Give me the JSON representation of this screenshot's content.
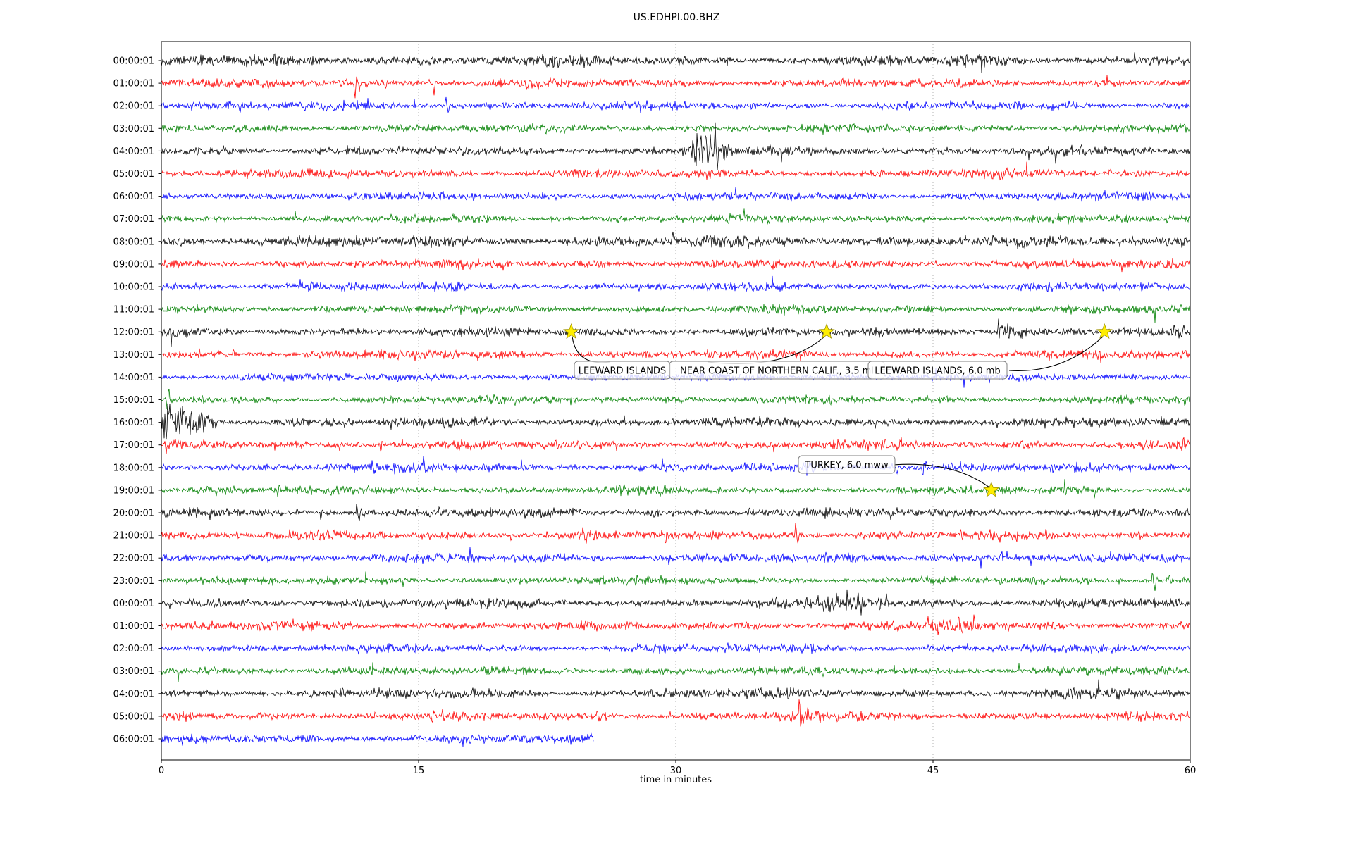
{
  "chart_data": {
    "type": "line",
    "variant": "seismogram-helicorder-dayplot",
    "title": "US.EDHPI.00.BHZ",
    "xlabel": "time in minutes",
    "x_range": [
      0,
      60
    ],
    "x_ticks": [
      0,
      15,
      30,
      45,
      60
    ],
    "grid_minutes": [
      15,
      30,
      45
    ],
    "grid_on": true,
    "colors": {
      "black": "#000000",
      "red": "#ff0000",
      "blue": "#0000ff",
      "green": "#008000",
      "grid": "#aaaaaa",
      "star_fill": "#ffee00",
      "star_edge": "#a09400",
      "box_border": "#808080",
      "box_fill": "rgba(255,255,255,0.82)"
    },
    "rows": [
      {
        "label": "00:00:01",
        "color": "black",
        "amp": 4.4,
        "end": 60,
        "bursts": [],
        "spikes": []
      },
      {
        "label": "01:00:01",
        "color": "red",
        "amp": 3.6,
        "end": 60,
        "bursts": [],
        "spikes": [
          [
            11.3,
            -22
          ],
          [
            11.55,
            -9
          ],
          [
            13.1,
            -7
          ],
          [
            15.9,
            -19
          ],
          [
            15.6,
            6
          ],
          [
            10.8,
            5
          ]
        ]
      },
      {
        "label": "02:00:01",
        "color": "blue",
        "amp": 3.6,
        "end": 60,
        "bursts": [],
        "spikes": [
          [
            4.6,
            -13
          ],
          [
            16.6,
            14
          ],
          [
            16.75,
            -11
          ],
          [
            26.6,
            9
          ],
          [
            36.9,
            5
          ],
          [
            49.8,
            4
          ]
        ]
      },
      {
        "label": "03:00:01",
        "color": "green",
        "amp": 3.4,
        "end": 60,
        "bursts": [],
        "spikes": []
      },
      {
        "label": "04:00:01",
        "color": "black",
        "amp": 3.8,
        "end": 60,
        "bursts": [
          [
            30.6,
            3.2,
            4.5
          ]
        ],
        "spikes": [
          [
            32.3,
            24
          ],
          [
            32.45,
            -20
          ],
          [
            31.5,
            10
          ],
          [
            33.2,
            8
          ]
        ]
      },
      {
        "label": "05:00:01",
        "color": "red",
        "amp": 3.6,
        "end": 60,
        "bursts": [],
        "spikes": []
      },
      {
        "label": "06:00:01",
        "color": "blue",
        "amp": 3.5,
        "end": 60,
        "bursts": [],
        "spikes": []
      },
      {
        "label": "07:00:01",
        "color": "green",
        "amp": 3.4,
        "end": 60,
        "bursts": [],
        "spikes": []
      },
      {
        "label": "08:00:01",
        "color": "black",
        "amp": 4.6,
        "end": 60,
        "bursts": [],
        "spikes": []
      },
      {
        "label": "09:00:01",
        "color": "red",
        "amp": 3.6,
        "end": 60,
        "bursts": [
          [
            35.5,
            1.2,
            1.8
          ]
        ],
        "spikes": []
      },
      {
        "label": "10:00:01",
        "color": "blue",
        "amp": 3.6,
        "end": 60,
        "bursts": [],
        "spikes": []
      },
      {
        "label": "11:00:01",
        "color": "green",
        "amp": 3.4,
        "end": 60,
        "bursts": [],
        "spikes": []
      },
      {
        "label": "12:00:01",
        "color": "black",
        "amp": 3.8,
        "end": 60,
        "bursts": [
          [
            48.6,
            2.2,
            3.4
          ]
        ],
        "spikes": [
          [
            48.8,
            13
          ],
          [
            49.1,
            -11
          ]
        ]
      },
      {
        "label": "13:00:01",
        "color": "red",
        "amp": 3.7,
        "end": 60,
        "bursts": [],
        "spikes": [
          [
            4.2,
            7
          ]
        ]
      },
      {
        "label": "14:00:01",
        "color": "blue",
        "amp": 3.4,
        "end": 60,
        "bursts": [],
        "spikes": []
      },
      {
        "label": "15:00:01",
        "color": "green",
        "amp": 3.4,
        "end": 60,
        "bursts": [],
        "spikes": [
          [
            0.35,
            -26
          ],
          [
            0.45,
            11
          ],
          [
            59.7,
            -9
          ]
        ]
      },
      {
        "label": "16:00:01",
        "color": "black",
        "amp": 3.8,
        "end": 60,
        "bursts": [
          [
            0,
            3.8,
            5.5,
            "decay"
          ]
        ],
        "spikes": [
          [
            0.3,
            -20
          ],
          [
            0.8,
            16
          ],
          [
            1.5,
            -14
          ],
          [
            2.4,
            12
          ],
          [
            13.4,
            -9
          ],
          [
            16.7,
            7
          ],
          [
            17.9,
            -6
          ],
          [
            27,
            6
          ],
          [
            36.6,
            6
          ],
          [
            38,
            -5
          ],
          [
            44.6,
            5
          ]
        ]
      },
      {
        "label": "17:00:01",
        "color": "red",
        "amp": 3.7,
        "end": 60,
        "bursts": [],
        "spikes": [
          [
            10.4,
            -8
          ],
          [
            12.8,
            -12
          ],
          [
            15.5,
            8
          ],
          [
            23,
            5
          ],
          [
            28,
            -5
          ],
          [
            41.5,
            8
          ],
          [
            43,
            -6
          ],
          [
            50.2,
            6
          ],
          [
            59.3,
            12
          ],
          [
            59.5,
            -8
          ]
        ]
      },
      {
        "label": "18:00:01",
        "color": "blue",
        "amp": 3.7,
        "end": 60,
        "bursts": [
          [
            37.3,
            2,
            1.8
          ]
        ],
        "spikes": [
          [
            10.2,
            6
          ],
          [
            12.3,
            10
          ],
          [
            12.5,
            -8
          ],
          [
            15.3,
            12
          ],
          [
            15.5,
            -10
          ],
          [
            18.8,
            9
          ],
          [
            21,
            7
          ],
          [
            42.9,
            -11
          ],
          [
            44.4,
            -16
          ],
          [
            44.6,
            8
          ]
        ]
      },
      {
        "label": "19:00:01",
        "color": "green",
        "amp": 3.4,
        "end": 60,
        "bursts": [],
        "spikes": [
          [
            3.2,
            -6
          ],
          [
            6.8,
            -12
          ],
          [
            6.9,
            6
          ],
          [
            32.5,
            -7
          ],
          [
            45.1,
            -5
          ]
        ]
      },
      {
        "label": "20:00:01",
        "color": "black",
        "amp": 3.9,
        "end": 60,
        "bursts": [],
        "spikes": [
          [
            2.8,
            -8
          ],
          [
            9.3,
            -10
          ],
          [
            11.4,
            14
          ],
          [
            11.55,
            -12
          ],
          [
            16.2,
            8
          ],
          [
            34.3,
            7
          ],
          [
            42.4,
            10
          ],
          [
            42.55,
            -8
          ],
          [
            55.6,
            6
          ],
          [
            58.9,
            5
          ]
        ]
      },
      {
        "label": "21:00:01",
        "color": "red",
        "amp": 3.7,
        "end": 60,
        "bursts": [],
        "spikes": [
          [
            20.4,
            -12
          ],
          [
            24.6,
            9
          ],
          [
            24.8,
            -7
          ],
          [
            29.2,
            8
          ],
          [
            29.4,
            -14
          ],
          [
            37.0,
            20
          ],
          [
            37.15,
            -10
          ],
          [
            46.6,
            8
          ],
          [
            48.3,
            9
          ],
          [
            51,
            5
          ],
          [
            57,
            4
          ]
        ]
      },
      {
        "label": "22:00:01",
        "color": "blue",
        "amp": 3.7,
        "end": 60,
        "bursts": [
          [
            17.5,
            1.5,
            2.4
          ],
          [
            44.5,
            4.5,
            1.7
          ]
        ],
        "spikes": [
          [
            18,
            11
          ],
          [
            18.2,
            -9
          ],
          [
            24,
            6
          ],
          [
            29.6,
            -12
          ],
          [
            47.8,
            -13
          ],
          [
            49,
            8
          ]
        ]
      },
      {
        "label": "23:00:01",
        "color": "green",
        "amp": 3.4,
        "end": 60,
        "bursts": [],
        "spikes": [
          [
            13.9,
            7
          ],
          [
            14.1,
            -6
          ],
          [
            33,
            5
          ],
          [
            57.8,
            16
          ],
          [
            57.95,
            -14
          ],
          [
            58.8,
            8
          ],
          [
            6.5,
            -5
          ]
        ]
      },
      {
        "label": "00:00:01",
        "color": "black",
        "amp": 4.0,
        "end": 60,
        "bursts": [
          [
            38,
            4.5,
            2.6
          ]
        ],
        "spikes": [
          [
            38.3,
            10
          ],
          [
            40.6,
            12
          ],
          [
            40.8,
            -14
          ],
          [
            41.9,
            -10
          ],
          [
            42.3,
            8
          ],
          [
            34.5,
            6
          ]
        ]
      },
      {
        "label": "01:00:01",
        "color": "red",
        "amp": 3.7,
        "end": 60,
        "bursts": [
          [
            44.6,
            3.2,
            2.2
          ]
        ],
        "spikes": [
          [
            11,
            5
          ],
          [
            44.7,
            12
          ],
          [
            45.2,
            -10
          ],
          [
            46.5,
            13
          ],
          [
            46.7,
            -11
          ],
          [
            47.4,
            12
          ],
          [
            52,
            6
          ]
        ]
      },
      {
        "label": "02:00:01",
        "color": "blue",
        "amp": 3.6,
        "end": 60,
        "bursts": [],
        "spikes": [
          [
            47,
            6
          ],
          [
            33,
            4
          ]
        ]
      },
      {
        "label": "03:00:01",
        "color": "green",
        "amp": 3.4,
        "end": 60,
        "bursts": [],
        "spikes": []
      },
      {
        "label": "04:00:01",
        "color": "black",
        "amp": 4.1,
        "end": 60,
        "bursts": [],
        "spikes": []
      },
      {
        "label": "05:00:01",
        "color": "red",
        "amp": 3.7,
        "end": 60,
        "bursts": [
          [
            36.6,
            2,
            2.6
          ]
        ],
        "spikes": [
          [
            15.8,
            -7
          ],
          [
            16.4,
            8
          ],
          [
            17.3,
            -6
          ],
          [
            20.6,
            8
          ],
          [
            25.4,
            9
          ],
          [
            25.6,
            -7
          ],
          [
            26.3,
            7
          ],
          [
            36.7,
            -8
          ],
          [
            37.2,
            26
          ],
          [
            37.45,
            -20
          ],
          [
            37.9,
            -12
          ],
          [
            38.3,
            10
          ]
        ]
      },
      {
        "label": "06:00:01",
        "color": "blue",
        "amp": 3.8,
        "end": 25.2,
        "bursts": [],
        "spikes": []
      }
    ],
    "stars": [
      {
        "row": 12,
        "min": 23.9
      },
      {
        "row": 12,
        "min": 38.8
      },
      {
        "row": 12,
        "min": 55.0
      },
      {
        "row": 19,
        "min": 48.4
      }
    ],
    "annotations": [
      {
        "id": "a1",
        "text": "LEEWARD ISLANDS",
        "star_index": 0
      },
      {
        "id": "a2",
        "text": "NEAR COAST OF NORTHERN CALIF., 3.5 ml",
        "star_index": 1
      },
      {
        "id": "a3",
        "text": "LEEWARD ISLANDS, 6.0 mb",
        "star_index": 2
      },
      {
        "id": "a4",
        "text": "TURKEY, 6.0 mww",
        "star_index": 3
      }
    ]
  }
}
